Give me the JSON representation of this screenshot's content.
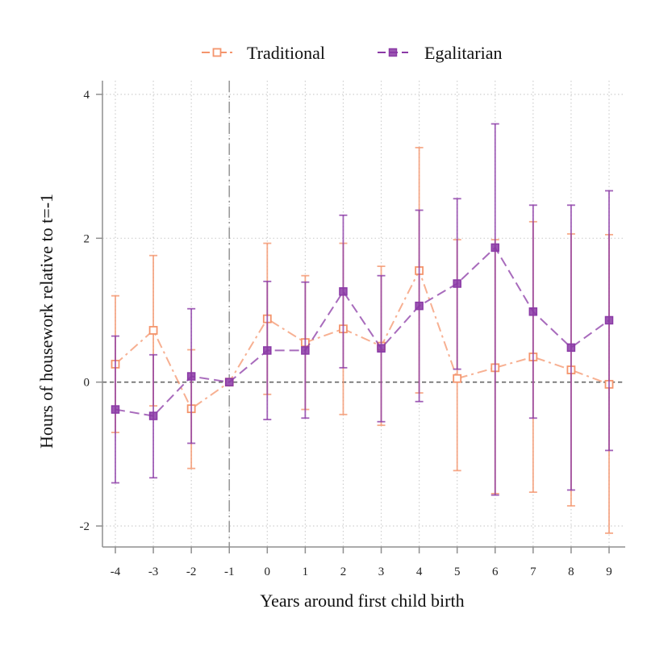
{
  "chart_data": {
    "type": "line",
    "xlabel": "Years around first child birth",
    "ylabel": "Hours of housework relative to t=-1",
    "x": [
      -4,
      -3,
      -2,
      -1,
      0,
      1,
      2,
      3,
      4,
      5,
      6,
      7,
      8,
      9
    ],
    "xlim": [
      -4,
      9
    ],
    "ylim": [
      -2.3,
      4
    ],
    "yticks": [
      -2,
      0,
      2,
      4
    ],
    "reference_x": -1,
    "reference_y": 0,
    "grid": true,
    "legend_position": "top",
    "series": [
      {
        "name": "Traditional",
        "color": "#f4956d",
        "marker": "hollow-square",
        "line_style": "dash-dot",
        "values": [
          0.25,
          0.72,
          -0.37,
          0,
          0.88,
          0.55,
          0.74,
          0.5,
          1.55,
          0.05,
          0.2,
          0.35,
          0.17,
          -0.03
        ],
        "ci_low": [
          -0.7,
          -0.33,
          -1.2,
          0,
          -0.17,
          -0.38,
          -0.45,
          -0.6,
          -0.15,
          -1.23,
          -1.55,
          -1.53,
          -1.72,
          -2.1
        ],
        "ci_high": [
          1.2,
          1.76,
          0.45,
          0,
          1.93,
          1.48,
          1.93,
          1.61,
          3.26,
          1.98,
          1.98,
          2.23,
          2.06,
          2.05
        ]
      },
      {
        "name": "Egalitarian",
        "color": "#8b3aa6",
        "marker": "filled-square",
        "line_style": "dash",
        "values": [
          -0.38,
          -0.47,
          0.08,
          0,
          0.44,
          0.44,
          1.26,
          0.47,
          1.06,
          1.37,
          1.87,
          0.98,
          0.48,
          0.86
        ],
        "ci_low": [
          -1.4,
          -1.33,
          -0.85,
          0,
          -0.52,
          -0.5,
          0.2,
          -0.55,
          -0.27,
          0.18,
          -1.57,
          -0.5,
          -1.5,
          -0.95
        ],
        "ci_high": [
          0.64,
          0.38,
          1.02,
          0,
          1.4,
          1.39,
          2.32,
          1.48,
          2.39,
          2.55,
          3.59,
          2.46,
          2.46,
          2.66
        ]
      }
    ]
  }
}
